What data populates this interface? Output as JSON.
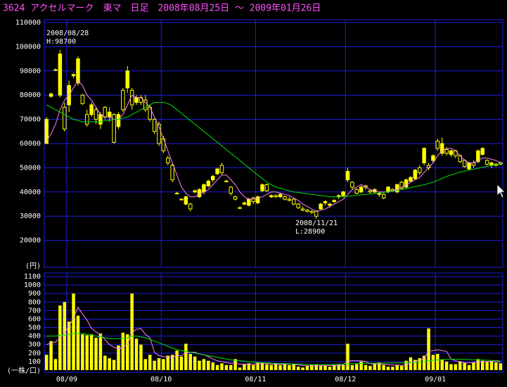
{
  "chart_data": {
    "type": "candlestick",
    "title": "3624 アクセルマーク　東マ　日足　2008年08月25日 ～ 2009年01月26日",
    "color": "#ffff00",
    "grid": true,
    "categories": [
      null,
      null,
      null,
      null,
      null,
      "08/09",
      null,
      null,
      null,
      null,
      null,
      null,
      null,
      null,
      null,
      null,
      null,
      null,
      null,
      null,
      null,
      null,
      null,
      null,
      null,
      null,
      "08/10",
      null,
      null,
      null,
      null,
      null,
      null,
      null,
      null,
      null,
      null,
      null,
      null,
      null,
      null,
      null,
      null,
      null,
      null,
      null,
      null,
      "08/11",
      null,
      null,
      null,
      null,
      null,
      null,
      null,
      null,
      null,
      null,
      null,
      null,
      null,
      null,
      null,
      null,
      null,
      null,
      null,
      "08/12",
      null,
      null,
      null,
      null,
      null,
      null,
      null,
      null,
      null,
      null,
      null,
      null,
      null,
      null,
      null,
      null,
      null,
      null,
      null,
      "09/01",
      null,
      null,
      null,
      null,
      null,
      null,
      null,
      null,
      null,
      null,
      null,
      null,
      null,
      null
    ],
    "ohlc": [
      [
        60000,
        71000,
        60000,
        70000
      ],
      [
        79500,
        81000,
        79000,
        80500
      ],
      [
        90500,
        91000,
        90000,
        90500
      ],
      [
        80000,
        98700,
        79000,
        97000
      ],
      [
        75000,
        77000,
        65000,
        66000
      ],
      [
        76000,
        86000,
        73000,
        84000
      ],
      [
        88000,
        89000,
        87000,
        88500
      ],
      [
        85000,
        96000,
        84000,
        95000
      ],
      [
        80000,
        80500,
        76000,
        76500
      ],
      [
        72000,
        74000,
        67000,
        68000
      ],
      [
        72000,
        77000,
        71000,
        76000
      ],
      [
        74000,
        75000,
        68000,
        70000
      ],
      [
        68000,
        73000,
        66000,
        72000
      ],
      [
        75000,
        75500,
        70000,
        71000
      ],
      [
        71000,
        75000,
        69000,
        73000
      ],
      [
        72000,
        72500,
        60000,
        60500
      ],
      [
        67000,
        73000,
        66000,
        72000
      ],
      [
        82000,
        83000,
        73000,
        74000
      ],
      [
        83000,
        92000,
        81000,
        90000
      ],
      [
        82000,
        83000,
        74000,
        76000
      ],
      [
        77000,
        80000,
        76000,
        79000
      ],
      [
        79000,
        80000,
        76000,
        77000
      ],
      [
        78000,
        80000,
        73000,
        74000
      ],
      [
        75000,
        76000,
        69000,
        70000
      ],
      [
        70000,
        70500,
        64000,
        65000
      ],
      [
        68000,
        69000,
        59000,
        60000
      ],
      [
        62000,
        63000,
        56000,
        57000
      ],
      [
        54000,
        55000,
        51000,
        52000
      ],
      [
        51000,
        52000,
        44000,
        45000
      ],
      [
        39500,
        40000,
        39000,
        39500
      ],
      [
        37000,
        37500,
        36500,
        37000
      ],
      [
        35000,
        38500,
        34500,
        38000
      ],
      [
        35000,
        35500,
        32000,
        33000
      ],
      [
        40000,
        41000,
        39500,
        40500
      ],
      [
        38000,
        41500,
        37500,
        41000
      ],
      [
        40000,
        43500,
        39000,
        43000
      ],
      [
        42500,
        45000,
        42000,
        44500
      ],
      [
        45000,
        47000,
        44000,
        46500
      ],
      [
        47500,
        50000,
        47000,
        49500
      ],
      [
        51000,
        52000,
        47000,
        48000
      ],
      [
        44500,
        45000,
        44000,
        44500
      ],
      [
        42000,
        42500,
        38500,
        39500
      ],
      [
        38000,
        38500,
        36500,
        37000
      ],
      [
        33500,
        34000,
        33000,
        33500
      ],
      [
        35000,
        36000,
        34500,
        35500
      ],
      [
        34500,
        37500,
        34000,
        37000
      ],
      [
        37500,
        38000,
        35000,
        36000
      ],
      [
        35500,
        38500,
        35000,
        38000
      ],
      [
        40500,
        43500,
        40000,
        43000
      ],
      [
        43000,
        43500,
        40000,
        40500
      ],
      [
        38000,
        39000,
        37500,
        38500
      ],
      [
        38500,
        39000,
        37500,
        38000
      ],
      [
        38000,
        39500,
        37500,
        39000
      ],
      [
        38000,
        38500,
        36500,
        37000
      ],
      [
        37000,
        38000,
        36000,
        36500
      ],
      [
        37000,
        37500,
        34500,
        35000
      ],
      [
        35000,
        35500,
        33000,
        33500
      ],
      [
        33000,
        34000,
        32000,
        32500
      ],
      [
        32500,
        33000,
        31500,
        32000
      ],
      [
        32000,
        32500,
        31000,
        31500
      ],
      [
        32000,
        32500,
        28900,
        30000
      ],
      [
        33000,
        35500,
        32500,
        35000
      ],
      [
        35500,
        36500,
        34500,
        36000
      ],
      [
        34500,
        35500,
        33500,
        35000
      ],
      [
        36000,
        37000,
        35500,
        36500
      ],
      [
        38000,
        39000,
        37000,
        38500
      ],
      [
        38500,
        40500,
        38000,
        40000
      ],
      [
        45000,
        50000,
        44000,
        48500
      ],
      [
        44000,
        44500,
        41000,
        42000
      ],
      [
        41000,
        41500,
        39000,
        39500
      ],
      [
        40000,
        42500,
        39500,
        42000
      ],
      [
        42500,
        43000,
        41000,
        42000
      ],
      [
        40500,
        41000,
        39500,
        40000
      ],
      [
        40000,
        41500,
        39500,
        41000
      ],
      [
        39000,
        40000,
        38000,
        39500
      ],
      [
        39000,
        39500,
        37000,
        37500
      ],
      [
        40000,
        42500,
        39500,
        42000
      ],
      [
        41000,
        41500,
        40000,
        40500
      ],
      [
        40000,
        43500,
        39500,
        43000
      ],
      [
        44000,
        44500,
        41000,
        41500
      ],
      [
        42000,
        45500,
        41500,
        45000
      ],
      [
        44500,
        46500,
        44000,
        46000
      ],
      [
        45500,
        49500,
        45000,
        49000
      ],
      [
        50000,
        51000,
        47000,
        48000
      ],
      [
        52000,
        58500,
        51000,
        58000
      ],
      [
        51000,
        52000,
        49000,
        50000
      ],
      [
        53000,
        55500,
        52000,
        55000
      ],
      [
        61000,
        62000,
        57000,
        58000
      ],
      [
        56000,
        62500,
        55000,
        60000
      ],
      [
        57500,
        58500,
        55000,
        56000
      ],
      [
        55500,
        57500,
        54500,
        57000
      ],
      [
        57000,
        57500,
        54000,
        55000
      ],
      [
        55000,
        55500,
        52000,
        52500
      ],
      [
        53000,
        53500,
        50000,
        50500
      ],
      [
        49500,
        52500,
        49000,
        52000
      ],
      [
        52000,
        53000,
        50000,
        51000
      ],
      [
        52500,
        57500,
        52000,
        57000
      ],
      [
        55500,
        58500,
        55000,
        58000
      ],
      [
        53000,
        53500,
        51000,
        51500
      ],
      [
        51000,
        52500,
        50000,
        52000
      ],
      [
        51500,
        52000,
        50500,
        51000
      ],
      [
        52000,
        52500,
        51000,
        51500
      ]
    ],
    "ylim": [
      10000,
      110000
    ],
    "yticks": [
      20000,
      30000,
      40000,
      50000,
      60000,
      70000,
      80000,
      90000,
      100000,
      110000
    ],
    "y_unit": "(円)",
    "series": [
      {
        "color": "#ff80ff",
        "values": [
          61000,
          64000,
          68000,
          74000,
          78000,
          80000,
          83000,
          86000,
          84000,
          80000,
          78000,
          75000,
          72000,
          71000,
          71000,
          70000,
          70000,
          72000,
          76000,
          80000,
          79000,
          79000,
          77000,
          75000,
          71000,
          67000,
          62000,
          57000,
          52000,
          47000,
          42000,
          39500,
          38000,
          38000,
          39000,
          40000,
          41000,
          43000,
          45000,
          47000,
          47000,
          45000,
          43000,
          40000,
          38000,
          37000,
          37000,
          37500,
          38000,
          39000,
          40000,
          40000,
          39500,
          39000,
          38500,
          37500,
          36500,
          35000,
          34000,
          33000,
          32000,
          32500,
          33000,
          34000,
          35000,
          36000,
          37000,
          39000,
          41000,
          42000,
          43000,
          42000,
          41000,
          40500,
          40000,
          40000,
          40000,
          40500,
          41000,
          42000,
          43000,
          44000,
          45000,
          46000,
          48000,
          50000,
          52000,
          55000,
          57000,
          58000,
          58000,
          57000,
          55000,
          53000,
          52000,
          52000,
          53000,
          54000,
          54000,
          53500,
          53000,
          52000
        ]
      },
      {
        "color": "#00e000",
        "values": [
          76000,
          75000,
          74000,
          73000,
          72000,
          71000,
          70000,
          69500,
          69000,
          69000,
          69000,
          69000,
          69000,
          69500,
          69500,
          70000,
          70000,
          70500,
          71000,
          72000,
          73000,
          74000,
          75000,
          76000,
          77000,
          77000,
          77000,
          76500,
          75500,
          74000,
          72500,
          71000,
          69500,
          68000,
          66500,
          65000,
          63500,
          62000,
          60500,
          59000,
          57500,
          56000,
          54500,
          53000,
          51500,
          50000,
          48500,
          47000,
          45500,
          44000,
          43000,
          42000,
          41500,
          41000,
          40500,
          40000,
          39800,
          39500,
          39300,
          39000,
          38800,
          38500,
          38300,
          38000,
          38000,
          38000,
          38000,
          38200,
          38400,
          38600,
          38800,
          39000,
          39200,
          39400,
          39600,
          39800,
          40000,
          40300,
          40600,
          41000,
          41400,
          41800,
          42200,
          42600,
          43000,
          43500,
          44000,
          44800,
          45600,
          46400,
          47000,
          47600,
          48200,
          48600,
          49000,
          49400,
          49800,
          50200,
          50600,
          51000,
          51300,
          51500
        ]
      }
    ],
    "annotations": [
      {
        "date": "2008/08/28",
        "label": "H:98700"
      },
      {
        "date": "2008/11/21",
        "label": "L:28900"
      }
    ],
    "volume": {
      "values": [
        180,
        340,
        130,
        760,
        800,
        570,
        900,
        640,
        420,
        410,
        420,
        380,
        430,
        170,
        140,
        120,
        290,
        440,
        420,
        900,
        370,
        300,
        130,
        180,
        110,
        140,
        130,
        170,
        180,
        230,
        160,
        310,
        190,
        160,
        110,
        130,
        110,
        90,
        60,
        80,
        60,
        60,
        130,
        30,
        70,
        80,
        60,
        90,
        90,
        70,
        60,
        80,
        60,
        70,
        60,
        70,
        40,
        30,
        50,
        60,
        70,
        50,
        50,
        40,
        60,
        70,
        60,
        310,
        60,
        70,
        100,
        60,
        50,
        80,
        90,
        60,
        40,
        40,
        60,
        50,
        110,
        150,
        120,
        140,
        170,
        490,
        180,
        190,
        120,
        100,
        70,
        70,
        100,
        90,
        60,
        90,
        130,
        110,
        100,
        100,
        90,
        80
      ],
      "ylim": [
        0,
        1100
      ],
      "yticks": [
        100,
        200,
        300,
        400,
        500,
        600,
        700,
        800,
        900,
        1000,
        1100
      ],
      "y_unit": "(一株/口)",
      "series": [
        {
          "color": "#ff80ff",
          "values": [
            300,
            320,
            330,
            380,
            440,
            520,
            610,
            740,
            660,
            590,
            490,
            450,
            410,
            360,
            300,
            270,
            250,
            270,
            300,
            440,
            480,
            490,
            420,
            380,
            210,
            170,
            160,
            150,
            150,
            170,
            170,
            200,
            210,
            210,
            190,
            180,
            160,
            130,
            110,
            100,
            90,
            80,
            80,
            70,
            70,
            70,
            70,
            70,
            80,
            80,
            70,
            70,
            70,
            70,
            70,
            70,
            60,
            55,
            50,
            50,
            50,
            52,
            55,
            55,
            55,
            55,
            60,
            110,
            110,
            110,
            110,
            100,
            75,
            70,
            75,
            70,
            65,
            60,
            60,
            55,
            65,
            85,
            105,
            120,
            140,
            220,
            230,
            240,
            230,
            220,
            130,
            110,
            100,
            85,
            85,
            90,
            95,
            100,
            100,
            105,
            100,
            95
          ]
        },
        {
          "color": "#00e000",
          "values": [
            400,
            400,
            400,
            410,
            410,
            420,
            430,
            430,
            430,
            420,
            410,
            400,
            390,
            380,
            370,
            370,
            370,
            370,
            380,
            400,
            400,
            390,
            380,
            360,
            340,
            320,
            300,
            280,
            260,
            240,
            230,
            220,
            210,
            200,
            190,
            180,
            170,
            160,
            150,
            140,
            130,
            120,
            115,
            110,
            105,
            100,
            95,
            90,
            88,
            85,
            82,
            80,
            78,
            76,
            74,
            72,
            70,
            68,
            66,
            65,
            64,
            64,
            64,
            65,
            66,
            67,
            70,
            74,
            76,
            78,
            80,
            80,
            80,
            80,
            82,
            82,
            84,
            84,
            86,
            86,
            88,
            90,
            92,
            95,
            100,
            110,
            115,
            120,
            124,
            126,
            128,
            128,
            128,
            126,
            124,
            122,
            120,
            118,
            116,
            114,
            112,
            110
          ]
        }
      ]
    }
  }
}
